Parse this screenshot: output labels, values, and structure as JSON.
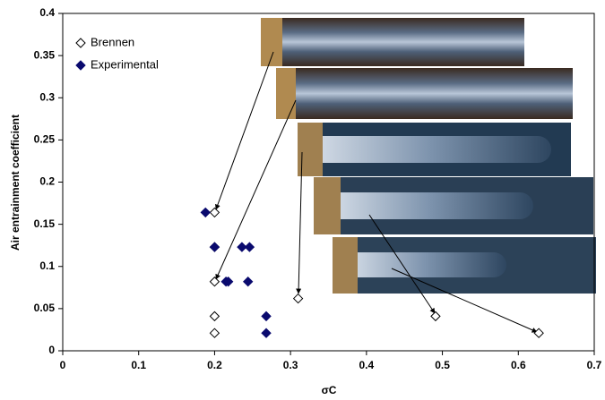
{
  "chart_data": {
    "type": "scatter",
    "xlabel": "σC",
    "ylabel": "Air entrainment coefficient",
    "xlim": [
      0,
      0.7
    ],
    "xticks": [
      0,
      0.1,
      0.2,
      0.3,
      0.4,
      0.5,
      0.6,
      0.7
    ],
    "ylim": [
      0,
      0.4
    ],
    "yticks": [
      0,
      0.05,
      0.1,
      0.15,
      0.2,
      0.25,
      0.3,
      0.35,
      0.4
    ],
    "legend": "upper left",
    "series": [
      {
        "name": "Brennen",
        "color": "#000000",
        "marker": "diamond-open",
        "x": [
          0.2,
          0.2,
          0.2,
          0.2,
          0.2,
          0.31,
          0.491,
          0.627
        ],
        "values": [
          0.164,
          0.123,
          0.082,
          0.041,
          0.021,
          0.062,
          0.041,
          0.021
        ]
      },
      {
        "name": "Experimental",
        "color": "#0a0a6e",
        "marker": "diamond",
        "x": [
          0.188,
          0.2,
          0.236,
          0.246,
          0.215,
          0.218,
          0.244,
          0.268,
          0.268
        ],
        "values": [
          0.164,
          0.123,
          0.123,
          0.123,
          0.082,
          0.082,
          0.082,
          0.041,
          0.021
        ]
      }
    ]
  }
}
